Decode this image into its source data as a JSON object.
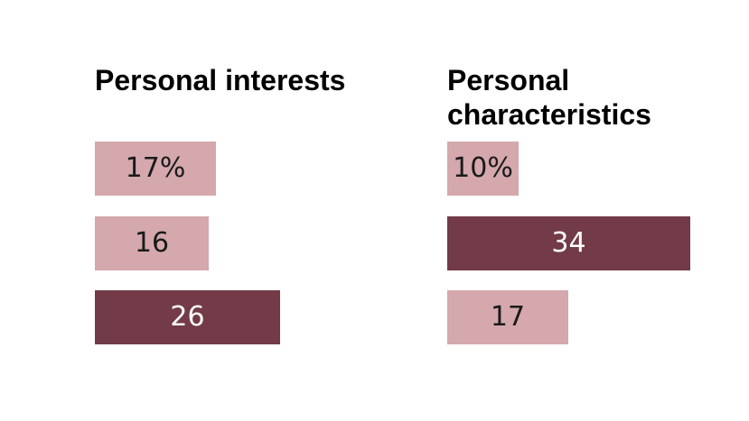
{
  "colors": {
    "light": "#d4a8ad",
    "dark": "#723b47",
    "light_text": "#1a1a1a",
    "dark_text": "#ffffff"
  },
  "chart_data": [
    {
      "type": "bar",
      "title": "Personal interests",
      "values": [
        17,
        16,
        26
      ],
      "labels": [
        "17%",
        "16",
        "26"
      ],
      "highlight": [
        false,
        false,
        true
      ]
    },
    {
      "type": "bar",
      "title": "Personal characteristics",
      "values": [
        10,
        34,
        17
      ],
      "labels": [
        "10%",
        "34",
        "17"
      ],
      "highlight": [
        false,
        true,
        false
      ]
    }
  ]
}
